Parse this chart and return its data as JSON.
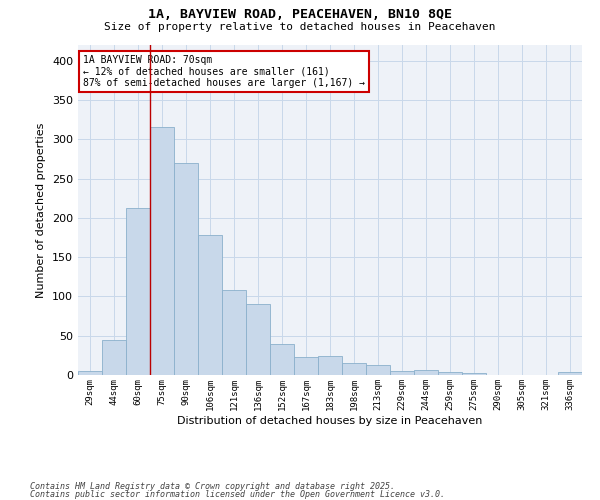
{
  "title1": "1A, BAYVIEW ROAD, PEACEHAVEN, BN10 8QE",
  "title2": "Size of property relative to detached houses in Peacehaven",
  "xlabel": "Distribution of detached houses by size in Peacehaven",
  "ylabel": "Number of detached properties",
  "categories": [
    "29sqm",
    "44sqm",
    "60sqm",
    "75sqm",
    "90sqm",
    "106sqm",
    "121sqm",
    "136sqm",
    "152sqm",
    "167sqm",
    "183sqm",
    "198sqm",
    "213sqm",
    "229sqm",
    "244sqm",
    "259sqm",
    "275sqm",
    "290sqm",
    "305sqm",
    "321sqm",
    "336sqm"
  ],
  "values": [
    5,
    44,
    212,
    315,
    270,
    178,
    108,
    91,
    40,
    23,
    24,
    15,
    13,
    5,
    6,
    4,
    3,
    0,
    0,
    0,
    4
  ],
  "bar_color": "#c8d8ea",
  "bar_edge_color": "#8ab0cc",
  "grid_color": "#c8d8ea",
  "red_line_x": 2.5,
  "annotation_text": "1A BAYVIEW ROAD: 70sqm\n← 12% of detached houses are smaller (161)\n87% of semi-detached houses are larger (1,167) →",
  "annotation_box_color": "#ffffff",
  "annotation_box_edge": "#cc0000",
  "footnote1": "Contains HM Land Registry data © Crown copyright and database right 2025.",
  "footnote2": "Contains public sector information licensed under the Open Government Licence v3.0.",
  "ylim": [
    0,
    420
  ],
  "yticks": [
    0,
    50,
    100,
    150,
    200,
    250,
    300,
    350,
    400
  ],
  "bg_color": "#eef2f8"
}
